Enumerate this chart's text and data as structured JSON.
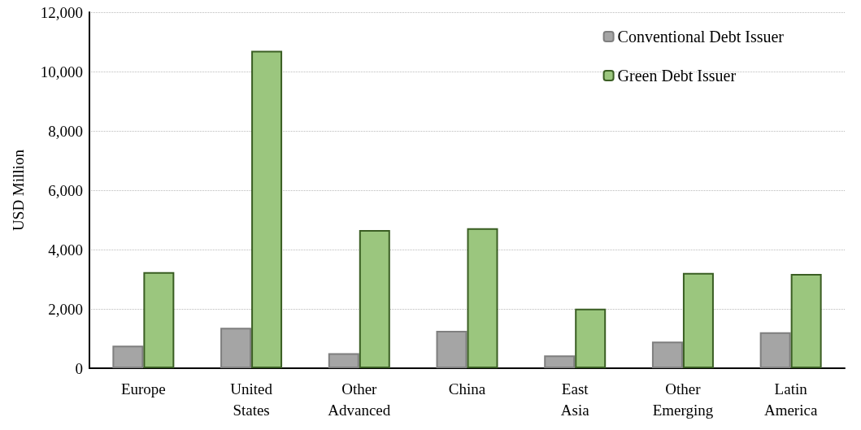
{
  "chart_data": {
    "type": "bar",
    "ylabel": "USD Million",
    "categories": [
      "Europe",
      "United\nStates",
      "Other\nAdvanced",
      "China",
      "East\nAsia",
      "Other\nEmerging",
      "Latin\nAmerica"
    ],
    "series": [
      {
        "name": "Conventional Debt Issuer",
        "color": "#a5a5a5",
        "values": [
          760,
          1360,
          510,
          1260,
          430,
          900,
          1210
        ]
      },
      {
        "name": "Green Debt Issuer",
        "color": "#9bc67e",
        "values": [
          3240,
          10700,
          4660,
          4720,
          2010,
          3210,
          3180
        ]
      }
    ],
    "ylim": [
      0,
      12000
    ],
    "yticks": [
      0,
      {
        "value": 2000,
        "label": "2,000"
      },
      {
        "value": 4000,
        "label": "4,000"
      },
      {
        "value": 6000,
        "label": "6,000"
      },
      {
        "value": 8000,
        "label": "8,000"
      },
      {
        "value": 10000,
        "label": "10,000"
      },
      {
        "value": 12000,
        "label": "12,000"
      }
    ],
    "grid": "y",
    "legend": "top right"
  }
}
